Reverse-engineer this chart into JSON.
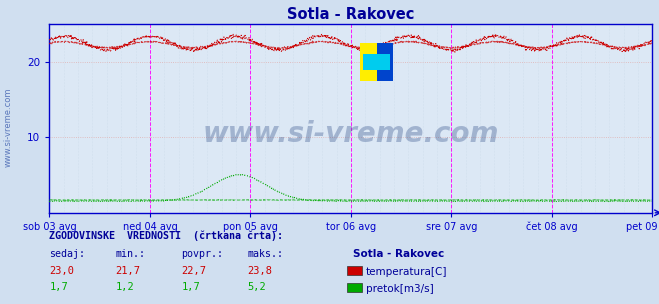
{
  "title": "Sotla - Rakovec",
  "title_color": "#000099",
  "background_color": "#d0dff0",
  "plot_bg_color": "#dce8f5",
  "grid_color": "#b8cce0",
  "x_labels": [
    "sob 03 avg",
    "ned 04 avg",
    "pon 05 avg",
    "tor 06 avg",
    "sre 07 avg",
    "čet 08 avg",
    "pet 09 avg"
  ],
  "x_ticks_norm": [
    0.0,
    0.1667,
    0.3333,
    0.5,
    0.6667,
    0.8333,
    1.0
  ],
  "y_min": 0,
  "y_max": 25,
  "y_ticks": [
    10,
    20
  ],
  "temp_color": "#cc0000",
  "flow_color": "#00aa00",
  "vline_color": "#ff00ff",
  "axis_color": "#0000cc",
  "watermark": "www.si-vreme.com",
  "watermark_color": "#1a3a7a",
  "watermark_alpha": 0.3,
  "legend_title": "Sotla - Rakovec",
  "legend_title_color": "#000099",
  "legend_items": [
    "temperatura[C]",
    "pretok[m3/s]"
  ],
  "legend_colors": [
    "#cc0000",
    "#00aa00"
  ],
  "stats_header": "ZGODOVINSKE  VREDNOSTI  (črtkana črta):",
  "stats_col_headers": [
    "sedaj:",
    "min.:",
    "povpr.:",
    "maks.:"
  ],
  "stats_temp": [
    "23,0",
    "21,7",
    "22,7",
    "23,8"
  ],
  "stats_flow": [
    "1,7",
    "1,2",
    "1,7",
    "5,2"
  ],
  "sidebar_text": "www.si-vreme.com",
  "logo_colors": [
    "#ffee00",
    "#0044cc",
    "#00ccee"
  ]
}
